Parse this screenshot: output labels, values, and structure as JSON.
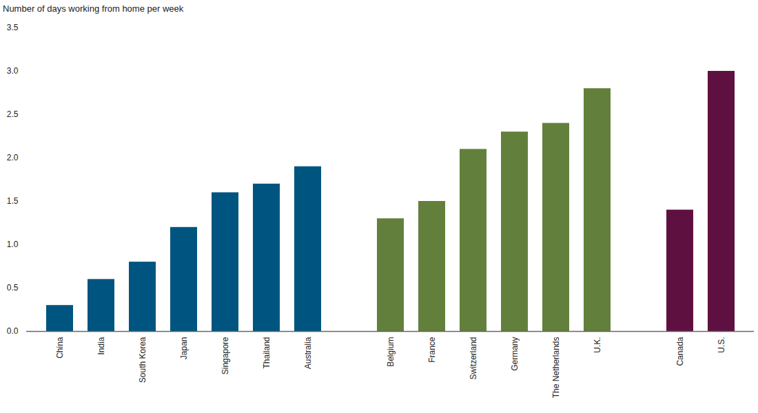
{
  "chart_data": {
    "type": "bar",
    "ylabel": "Number of days working from home per week",
    "categories": [
      "China",
      "India",
      "South Korea",
      "Japan",
      "Singapore",
      "Thailand",
      "Australia",
      null,
      "Belgium",
      "France",
      "Switzerland",
      "Germany",
      "The Netherlands",
      "U.K.",
      null,
      "Canada",
      "U.S."
    ],
    "values": [
      0.3,
      0.6,
      0.8,
      1.2,
      1.6,
      1.7,
      1.9,
      null,
      1.3,
      1.5,
      2.1,
      2.3,
      2.4,
      2.8,
      null,
      1.4,
      3.0
    ],
    "colors": [
      "#005480",
      "#005480",
      "#005480",
      "#005480",
      "#005480",
      "#005480",
      "#005480",
      null,
      "#62803b",
      "#62803b",
      "#62803b",
      "#62803b",
      "#62803b",
      "#62803b",
      null,
      "#5e1140",
      "#5e1140"
    ],
    "ylim": [
      0,
      3.5
    ],
    "yticks": [
      {
        "value": 0,
        "label": "0.0"
      },
      {
        "value": 0.5,
        "label": "0.5"
      },
      {
        "value": 1,
        "label": "1.0"
      },
      {
        "value": 1.5,
        "label": "1.5"
      },
      {
        "value": 2,
        "label": "2.0"
      },
      {
        "value": 2.5,
        "label": "2.5"
      },
      {
        "value": 3,
        "label": "3.0"
      },
      {
        "value": 3.5,
        "label": "3.5"
      }
    ],
    "grid": false
  }
}
